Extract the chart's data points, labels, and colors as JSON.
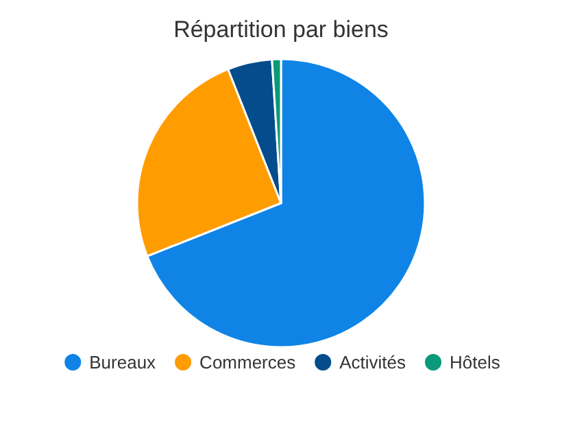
{
  "chart_data": {
    "type": "pie",
    "title": "Répartition par biens",
    "categories": [
      "Bureaux",
      "Commerces",
      "Activités",
      "Hôtels"
    ],
    "values": [
      69,
      25,
      5,
      1
    ],
    "colors": [
      "#0f84e6",
      "#ff9c00",
      "#044c8c",
      "#0a9a78"
    ],
    "legend": "bottom"
  }
}
